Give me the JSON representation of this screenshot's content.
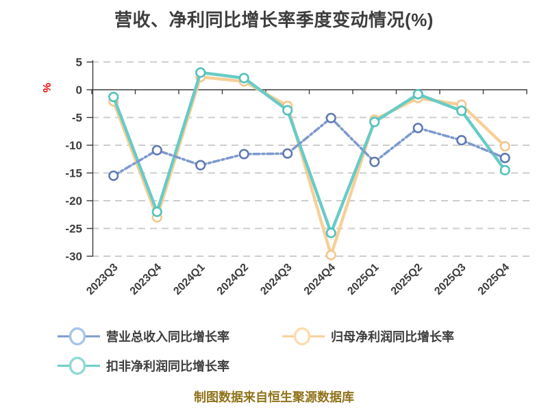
{
  "source_note": "制图数据来自恒生聚源数据库",
  "chart_data": {
    "type": "line",
    "title": "营收、净利同比增长率季度变动情况(%)",
    "ylabel": "%",
    "ylabel_color": "#ee0000",
    "ylim": [
      -30,
      5
    ],
    "yticks": [
      5,
      0,
      -5,
      -10,
      -15,
      -20,
      -25,
      -30
    ],
    "grid": "dashed-horizontal",
    "legend_position": "bottom",
    "x_axis_on_zero": true,
    "categories": [
      "2023Q3",
      "2023Q4",
      "2024Q1",
      "2024Q2",
      "2024Q3",
      "2024Q4",
      "2025Q1",
      "2025Q2",
      "2025Q3",
      "2025Q4"
    ],
    "series": [
      {
        "name": "营业总收入同比增长率",
        "color": "#7d99cd",
        "marker_ring": "#5f7ab3",
        "legend_ring": "#a9c5e8",
        "line_style": "dashed",
        "values": [
          -15.5,
          -10.9,
          -13.6,
          -11.6,
          -11.5,
          -5.1,
          -13.0,
          -6.9,
          -9.1,
          -12.3
        ]
      },
      {
        "name": "归母净利润同比增长率",
        "color": "#f8cf98",
        "marker_ring": "#f4c78e",
        "legend_ring": "#fbdcae",
        "line_style": "solid",
        "values": [
          -2.1,
          -23.0,
          2.3,
          1.5,
          -2.9,
          -29.8,
          -5.4,
          -1.5,
          -2.7,
          -10.2
        ]
      },
      {
        "name": "扣非净利润同比增长率",
        "color": "#68cbc6",
        "marker_ring": "#53c2bd",
        "legend_ring": "#90d9d4",
        "line_style": "solid",
        "values": [
          -1.3,
          -22.0,
          3.1,
          2.1,
          -3.7,
          -25.8,
          -5.8,
          -0.8,
          -3.8,
          -14.5
        ]
      }
    ],
    "style": {
      "axis_color": "#3a3a3a",
      "grid_color": "#cdcdcd",
      "tick_label_color": "#3c3c3c",
      "background": "#ffffff"
    }
  }
}
